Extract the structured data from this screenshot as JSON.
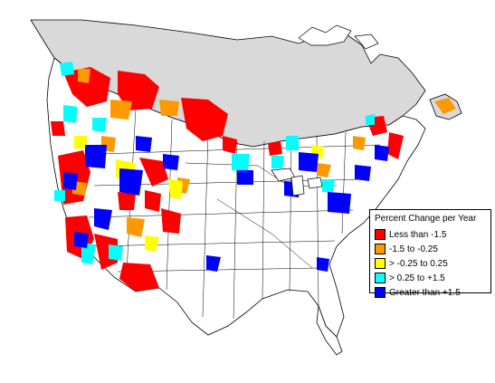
{
  "colors": {
    "background": "#ffffff",
    "no_data_region": "#d9d9d9",
    "boundary": "#000000",
    "less_than_neg_1_5": "#ff0000",
    "neg_1_5_to_neg_0_25": "#ff9900",
    "neg_0_25_to_0_25": "#ffff00",
    "pos_0_25_to_1_5": "#00ffff",
    "greater_than_1_5": "#0000ff"
  },
  "legend": {
    "title": "Percent Change per Year",
    "items": [
      {
        "label": "Less than -1.5",
        "color": "#ff0000"
      },
      {
        "label": "-1.5 to -0.25",
        "color": "#ff9900"
      },
      {
        "label": "> -0.25 to 0.25",
        "color": "#ffff00"
      },
      {
        "label": "> 0.25 to +1.5",
        "color": "#00ffff"
      },
      {
        "label": "Greater than +1.5",
        "color": "#0000ff"
      }
    ]
  }
}
